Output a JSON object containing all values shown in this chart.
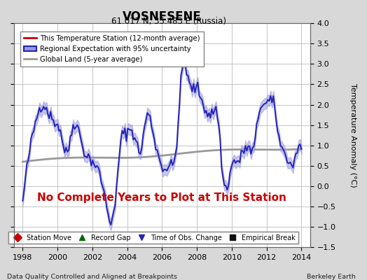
{
  "title": "VOSNESENE",
  "subtitle": "61.017 N, 35.483 E (Russia)",
  "ylabel": "Temperature Anomaly (°C)",
  "xlabel_note": "Data Quality Controlled and Aligned at Breakpoints",
  "credit": "Berkeley Earth",
  "no_data_text": "No Complete Years to Plot at This Station",
  "xlim": [
    1997.5,
    2014.5
  ],
  "ylim": [
    -1.5,
    4.0
  ],
  "yticks": [
    -1.5,
    -1.0,
    -0.5,
    0.0,
    0.5,
    1.0,
    1.5,
    2.0,
    2.5,
    3.0,
    3.5,
    4.0
  ],
  "xticks": [
    1998,
    2000,
    2002,
    2004,
    2006,
    2008,
    2010,
    2012,
    2014
  ],
  "background_color": "#d8d8d8",
  "plot_bg_color": "#ffffff",
  "grid_color": "#bbbbbb",
  "regional_color": "#2222bb",
  "regional_fill_color": "#9999dd",
  "global_land_color": "#999999",
  "station_color": "#cc0000",
  "no_data_color": "#cc0000",
  "legend1_entries": [
    {
      "label": "This Temperature Station (12-month average)",
      "color": "#cc0000"
    },
    {
      "label": "Regional Expectation with 95% uncertainty",
      "color": "#2222bb"
    },
    {
      "label": "Global Land (5-year average)",
      "color": "#999999"
    }
  ],
  "legend2_entries": [
    {
      "label": "Station Move",
      "marker": "D",
      "color": "#cc0000"
    },
    {
      "label": "Record Gap",
      "marker": "^",
      "color": "#006600"
    },
    {
      "label": "Time of Obs. Change",
      "marker": "v",
      "color": "#2222bb"
    },
    {
      "label": "Empirical Break",
      "marker": "s",
      "color": "#111111"
    }
  ]
}
